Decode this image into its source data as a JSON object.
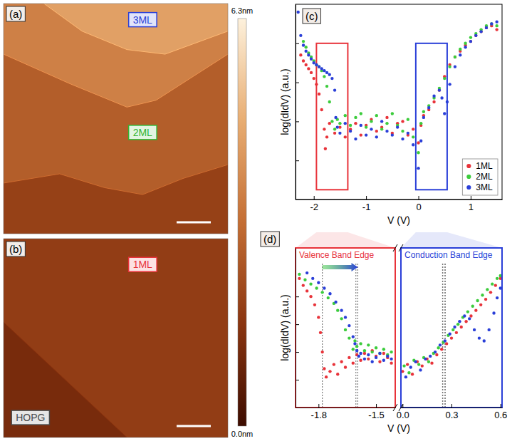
{
  "chart_data": [
    {
      "type": "topography",
      "panel_label": "(a)",
      "terraces": [
        {
          "height": 1.9
        },
        {
          "height": 2.7,
          "label": "2ML",
          "color": "#32b432"
        },
        {
          "height": 3.6
        },
        {
          "height": 4.4,
          "label": "3ML",
          "color": "#2a3fd8"
        }
      ]
    },
    {
      "type": "topography",
      "panel_label": "(b)",
      "terraces": [
        {
          "height": 1.8,
          "label": "1ML",
          "color": "#e8333a"
        },
        {
          "height": 1.2,
          "label": "HOPG",
          "color": "#4a4a4a"
        }
      ]
    },
    {
      "type": "colorbar",
      "range": [
        0,
        6.3
      ],
      "ticks": [
        {
          "value": 6.3,
          "label": "6.3nm"
        },
        {
          "value": 0,
          "label": "0.0nm"
        }
      ]
    },
    {
      "type": "scatter",
      "panel_label": "(c)",
      "xlabel": "V (V)",
      "ylabel": "log(dIdV) (a.u.)",
      "xlim": [
        -2.35,
        1.6
      ],
      "xticks": [
        -2,
        -1,
        0,
        1
      ],
      "ylim": [
        0,
        10
      ],
      "yticks": [
        2,
        4,
        6,
        8
      ],
      "tick_labels": "x",
      "legend": "lower right",
      "marker": "circle",
      "highlights": [
        {
          "xlim": [
            -1.95,
            -1.35
          ],
          "color": "#e8333a"
        },
        {
          "xlim": [
            -0.05,
            0.55
          ],
          "color": "#2a3fd8"
        }
      ],
      "series": [
        {
          "name": "1ML",
          "color": "#e8333a",
          "x": [
            -2.25,
            -2.2,
            -2.15,
            -2.1,
            -2.05,
            -2.0,
            -1.95,
            -1.9,
            -1.85,
            -1.8,
            -1.78,
            -1.75,
            -1.7,
            -1.6,
            -1.5,
            -1.4,
            -1.3,
            -1.2,
            -1.1,
            -1.0,
            -0.9,
            -0.8,
            -0.7,
            -0.6,
            -0.5,
            -0.4,
            -0.3,
            -0.2,
            -0.1,
            0.0,
            0.05,
            0.1,
            0.2,
            0.3,
            0.4,
            0.5,
            0.6,
            0.7,
            0.8,
            0.9,
            1.0,
            1.1,
            1.2,
            1.3,
            1.4,
            1.5
          ],
          "values": [
            7.4,
            7.1,
            6.9,
            6.7,
            6.5,
            6.2,
            5.9,
            5.4,
            4.6,
            3.6,
            2.6,
            3.2,
            3.9,
            3.4,
            3.7,
            3.2,
            3.6,
            3.9,
            3.3,
            3.8,
            4.1,
            3.5,
            3.7,
            4.2,
            3.4,
            3.9,
            4.0,
            3.3,
            3.6,
            2.9,
            3.8,
            4.3,
            4.6,
            5.0,
            5.6,
            6.3,
            6.9,
            7.3,
            7.6,
            7.9,
            8.1,
            8.4,
            8.6,
            8.8,
            8.9,
            8.7
          ]
        },
        {
          "name": "2ML",
          "color": "#3ccc3c",
          "x": [
            -2.2,
            -2.15,
            -2.1,
            -2.05,
            -2.0,
            -1.95,
            -1.9,
            -1.85,
            -1.8,
            -1.75,
            -1.7,
            -1.65,
            -1.6,
            -1.55,
            -1.5,
            -1.4,
            -1.3,
            -1.2,
            -1.1,
            -1.0,
            -0.9,
            -0.8,
            -0.7,
            -0.6,
            -0.5,
            -0.4,
            -0.3,
            -0.2,
            -0.1,
            0.0,
            0.05,
            0.1,
            0.2,
            0.3,
            0.4,
            0.5,
            0.6,
            0.7,
            0.8,
            0.9,
            1.0,
            1.1,
            1.2,
            1.3,
            1.4,
            1.5
          ],
          "values": [
            8.1,
            7.8,
            7.5,
            7.3,
            7.1,
            6.9,
            6.8,
            6.6,
            6.3,
            5.8,
            5.0,
            4.0,
            3.6,
            4.1,
            3.9,
            4.3,
            3.8,
            4.2,
            4.4,
            3.7,
            4.0,
            4.3,
            3.6,
            3.9,
            4.4,
            3.8,
            3.5,
            4.1,
            3.2,
            2.4,
            3.9,
            4.5,
            4.8,
            5.2,
            5.7,
            6.2,
            6.8,
            7.3,
            7.7,
            8.0,
            8.3,
            8.5,
            8.7,
            8.9,
            9.0,
            8.9
          ]
        },
        {
          "name": "3ML",
          "color": "#2a3fd8",
          "x": [
            -2.3,
            -2.25,
            -2.2,
            -2.15,
            -2.1,
            -2.05,
            -2.0,
            -1.95,
            -1.9,
            -1.85,
            -1.8,
            -1.75,
            -1.7,
            -1.65,
            -1.6,
            -1.58,
            -1.55,
            -1.5,
            -1.4,
            -1.3,
            -1.2,
            -1.1,
            -1.0,
            -0.9,
            -0.8,
            -0.7,
            -0.6,
            -0.5,
            -0.4,
            -0.3,
            -0.2,
            -0.1,
            0.0,
            0.05,
            0.1,
            0.2,
            0.3,
            0.4,
            0.45,
            0.5,
            0.55,
            0.6,
            0.7,
            0.8,
            0.9,
            1.0,
            1.1,
            1.2,
            1.3,
            1.4,
            1.5
          ],
          "values": [
            9.6,
            8.4,
            7.9,
            7.6,
            7.4,
            7.2,
            7.0,
            6.9,
            6.8,
            6.7,
            6.6,
            6.5,
            6.4,
            6.2,
            5.6,
            4.2,
            3.7,
            3.4,
            3.9,
            3.5,
            3.1,
            3.8,
            3.3,
            3.6,
            3.2,
            4.0,
            3.5,
            3.3,
            3.7,
            3.1,
            3.4,
            2.8,
            1.6,
            3.0,
            4.2,
            4.7,
            5.3,
            5.6,
            5.2,
            4.4,
            5.0,
            5.9,
            6.8,
            7.4,
            7.8,
            8.1,
            8.4,
            8.6,
            8.8,
            9.0,
            9.1
          ]
        }
      ]
    },
    {
      "type": "scatter",
      "panel_label": "(d)",
      "xlabel": "V (V)",
      "ylabel": "log(dIdV) (a.u.)",
      "ylim": [
        0,
        11.5
      ],
      "yticks": [
        2,
        4,
        6,
        8
      ],
      "tick_labels": "x",
      "marker": "circle",
      "segments": [
        {
          "title": "Valence Band Edge",
          "color": "#e8333a",
          "xlim": [
            -1.92,
            -1.4
          ],
          "xticks": [
            -1.8,
            -1.5
          ],
          "edges": [
            -1.78,
            -1.605,
            -1.595
          ],
          "series": [
            {
              "color": "#e8333a",
              "x": [
                -1.9,
                -1.88,
                -1.86,
                -1.84,
                -1.82,
                -1.8,
                -1.79,
                -1.78,
                -1.77,
                -1.76,
                -1.74,
                -1.72,
                -1.7,
                -1.68,
                -1.66,
                -1.64,
                -1.62,
                -1.6,
                -1.58,
                -1.56,
                -1.54,
                -1.52,
                -1.5,
                -1.48,
                -1.46,
                -1.44,
                -1.42
              ],
              "values": [
                9.3,
                8.8,
                8.4,
                8.0,
                7.4,
                6.5,
                5.4,
                4.0,
                2.8,
                2.2,
                2.6,
                3.1,
                2.4,
                3.3,
                2.9,
                3.6,
                3.2,
                3.8,
                3.4,
                3.9,
                3.5,
                4.1,
                3.7,
                3.3,
                3.9,
                3.6,
                3.2
              ]
            },
            {
              "color": "#3ccc3c",
              "x": [
                -1.9,
                -1.87,
                -1.84,
                -1.81,
                -1.78,
                -1.75,
                -1.72,
                -1.7,
                -1.68,
                -1.66,
                -1.64,
                -1.62,
                -1.61,
                -1.6,
                -1.58,
                -1.56,
                -1.54,
                -1.52,
                -1.5,
                -1.48,
                -1.46,
                -1.44,
                -1.42
              ],
              "values": [
                9.6,
                9.2,
                8.9,
                8.6,
                8.3,
                7.9,
                7.5,
                7.0,
                6.4,
                5.6,
                5.0,
                4.2,
                4.8,
                4.4,
                4.6,
                4.1,
                4.5,
                4.0,
                4.3,
                3.9,
                4.2,
                3.8,
                4.0
              ]
            },
            {
              "color": "#2a3fd8",
              "x": [
                -1.86,
                -1.83,
                -1.8,
                -1.77,
                -1.74,
                -1.71,
                -1.68,
                -1.66,
                -1.64,
                -1.62,
                -1.61,
                -1.6,
                -1.59,
                -1.58,
                -1.56,
                -1.54,
                -1.52,
                -1.5,
                -1.48,
                -1.46,
                -1.44,
                -1.42
              ],
              "values": [
                9.7,
                9.3,
                9.0,
                8.6,
                8.2,
                7.6,
                7.0,
                6.5,
                5.9,
                5.1,
                4.6,
                4.1,
                3.7,
                3.9,
                3.5,
                3.8,
                3.3,
                3.6,
                3.9,
                3.4,
                3.7,
                3.5
              ]
            }
          ]
        },
        {
          "title": "Conduction Band Edge",
          "color": "#2a3fd8",
          "xlim": [
            -0.01,
            0.61
          ],
          "xticks": [
            {
              "value": 0,
              "label": "0.0"
            },
            0.3,
            0.6
          ],
          "edges": [
            0.245,
            0.255,
            0.262
          ],
          "series": [
            {
              "color": "#e8333a",
              "x": [
                0.0,
                0.03,
                0.06,
                0.09,
                0.12,
                0.15,
                0.18,
                0.21,
                0.24,
                0.27,
                0.3,
                0.33,
                0.36,
                0.39,
                0.42,
                0.45,
                0.48,
                0.51,
                0.54,
                0.57,
                0.6
              ],
              "values": [
                2.6,
                3.1,
                2.4,
                3.3,
                3.0,
                3.5,
                3.2,
                3.8,
                4.2,
                4.6,
                5.0,
                5.4,
                5.8,
                6.2,
                6.6,
                7.0,
                7.4,
                7.8,
                8.3,
                8.8,
                9.3
              ]
            },
            {
              "color": "#3ccc3c",
              "x": [
                0.01,
                0.04,
                0.07,
                0.1,
                0.13,
                0.16,
                0.19,
                0.22,
                0.25,
                0.28,
                0.31,
                0.34,
                0.37,
                0.4,
                0.43,
                0.46,
                0.49,
                0.52,
                0.55,
                0.58,
                0.6
              ],
              "values": [
                3.0,
                2.5,
                3.4,
                3.1,
                3.6,
                3.3,
                3.9,
                4.3,
                4.7,
                5.2,
                5.6,
                6.0,
                6.5,
                6.9,
                7.3,
                7.7,
                8.1,
                8.5,
                8.9,
                9.3,
                9.5
              ]
            },
            {
              "color": "#2a3fd8",
              "x": [
                0.02,
                0.05,
                0.08,
                0.11,
                0.14,
                0.17,
                0.2,
                0.23,
                0.26,
                0.29,
                0.32,
                0.35,
                0.38,
                0.41,
                0.44,
                0.47,
                0.5,
                0.53,
                0.56,
                0.58,
                0.6
              ],
              "values": [
                2.2,
                2.9,
                3.3,
                2.7,
                3.5,
                3.7,
                4.0,
                4.5,
                4.8,
                5.3,
                5.8,
                6.2,
                6.6,
                6.4,
                5.6,
                5.0,
                4.8,
                5.6,
                6.8,
                7.9,
                8.6
              ]
            }
          ]
        }
      ]
    }
  ]
}
